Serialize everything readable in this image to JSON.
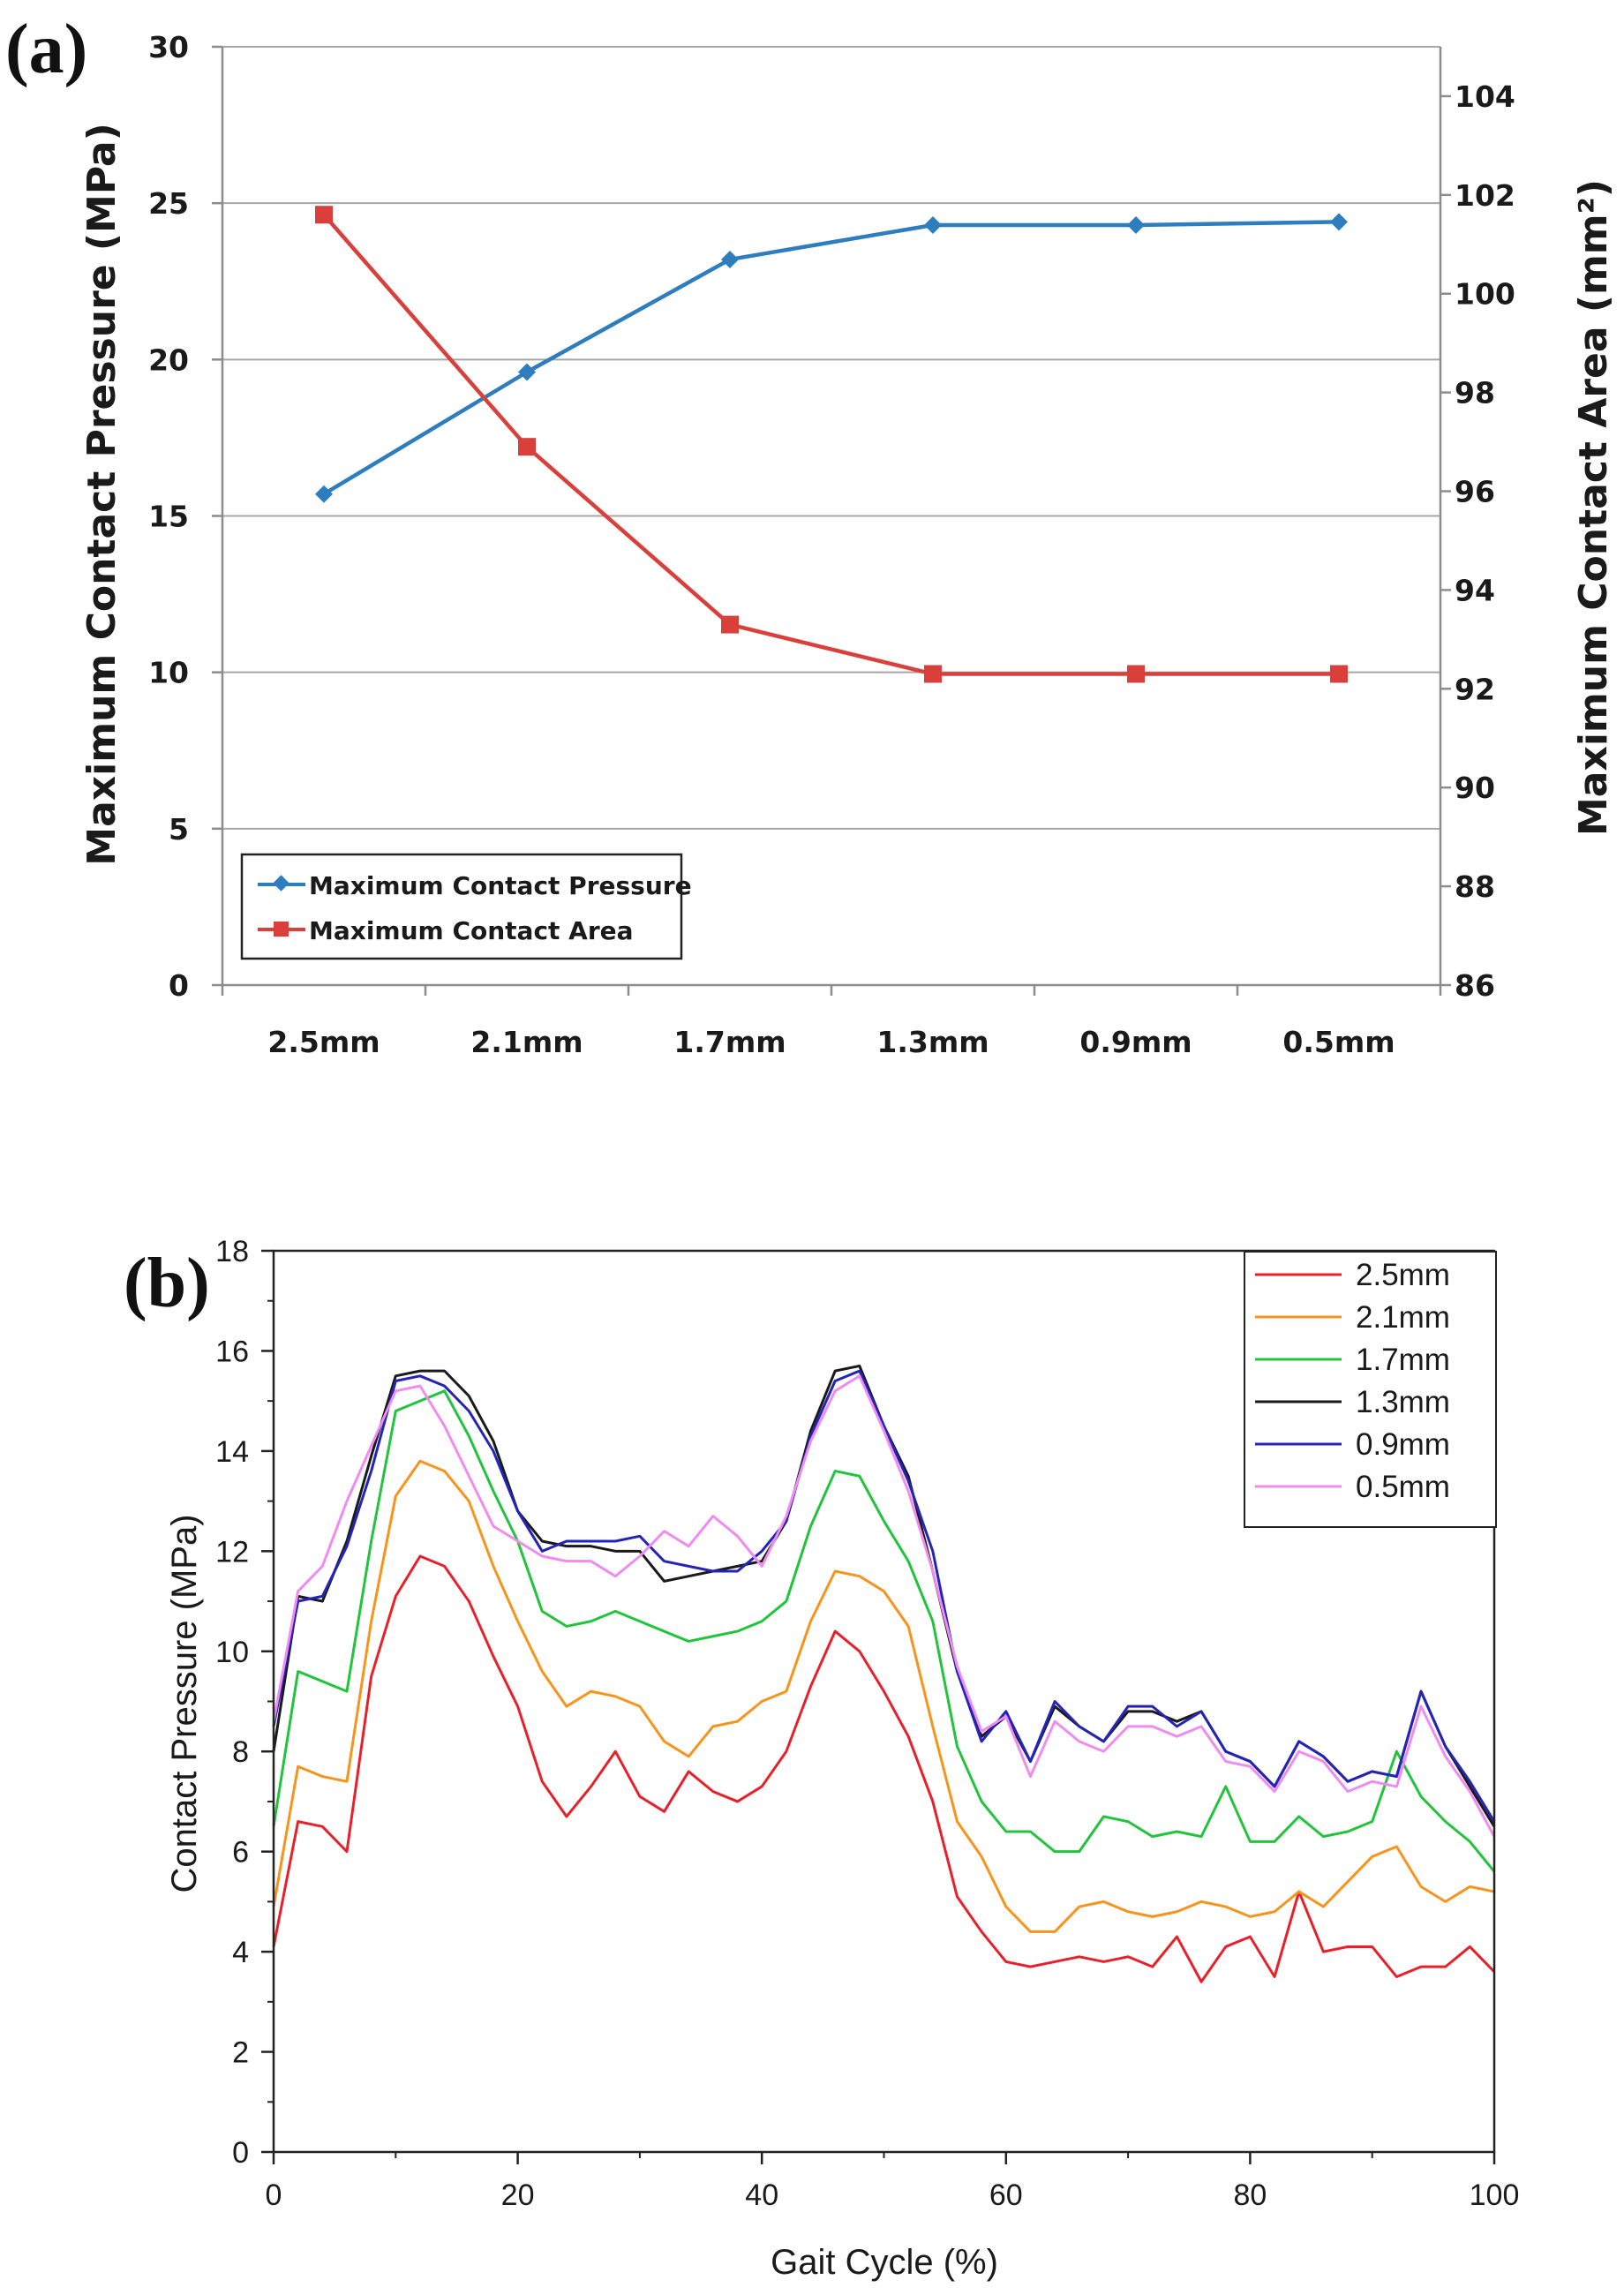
{
  "chart_data": [
    {
      "panel": "(a)",
      "type": "line",
      "title": "",
      "xlabel": "",
      "ylabel": "Maximum Contact Pressure (MPa)",
      "y2label": "Maximum Contact Area (mm²)",
      "categories": [
        "2.5mm",
        "2.1mm",
        "1.7mm",
        "1.3mm",
        "0.9mm",
        "0.5mm"
      ],
      "ylim": [
        0,
        30
      ],
      "y_ticks": [
        0,
        5,
        10,
        15,
        20,
        25,
        30
      ],
      "y2lim": [
        86,
        105
      ],
      "y2_ticks": [
        86,
        88,
        90,
        92,
        94,
        96,
        98,
        100,
        102,
        104
      ],
      "grid": "horizontal",
      "legend_position": "bottom-left",
      "series": [
        {
          "name": "Maximum Contact Pressure",
          "axis": "left",
          "color": "#2e7ebf",
          "marker": "diamond",
          "values": [
            15.7,
            19.6,
            23.2,
            24.3,
            24.3,
            24.4
          ]
        },
        {
          "name": "Maximum Contact Area",
          "axis": "right",
          "color": "#d9403b",
          "marker": "square",
          "values": [
            101.6,
            96.9,
            93.3,
            92.3,
            92.3,
            92.3
          ]
        }
      ]
    },
    {
      "panel": "(b)",
      "type": "line",
      "title": "",
      "xlabel": "Gait Cycle (%)",
      "ylabel": "Contact Pressure (MPa)",
      "xlim": [
        0,
        100
      ],
      "x_ticks": [
        0,
        20,
        40,
        60,
        80,
        100
      ],
      "ylim": [
        0,
        18
      ],
      "y_ticks": [
        0,
        2,
        4,
        6,
        8,
        10,
        12,
        14,
        16,
        18
      ],
      "grid": "none",
      "legend_position": "top-right",
      "x": [
        0,
        2,
        4,
        6,
        8,
        10,
        12,
        14,
        16,
        18,
        20,
        22,
        24,
        26,
        28,
        30,
        32,
        34,
        36,
        38,
        40,
        42,
        44,
        46,
        48,
        50,
        52,
        54,
        56,
        58,
        60,
        62,
        64,
        66,
        68,
        70,
        72,
        74,
        76,
        78,
        80,
        82,
        84,
        86,
        88,
        90,
        92,
        94,
        96,
        98,
        100
      ],
      "series": [
        {
          "name": "2.5mm",
          "color": "#e8202a",
          "values": [
            4.1,
            6.6,
            6.5,
            6.0,
            9.5,
            11.1,
            11.9,
            11.7,
            11.0,
            9.9,
            8.9,
            7.4,
            6.7,
            7.3,
            8.0,
            7.1,
            6.8,
            7.6,
            7.2,
            7.0,
            7.3,
            8.0,
            9.3,
            10.4,
            10.0,
            9.2,
            8.3,
            7.0,
            5.1,
            4.4,
            3.8,
            3.7,
            3.8,
            3.9,
            3.8,
            3.9,
            3.7,
            4.3,
            3.4,
            4.1,
            4.3,
            3.5,
            5.2,
            4.0,
            4.1,
            4.1,
            3.5,
            3.7,
            3.7,
            4.1,
            3.6
          ]
        },
        {
          "name": "2.1mm",
          "color": "#f7941d",
          "values": [
            4.9,
            7.7,
            7.5,
            7.4,
            10.6,
            13.1,
            13.8,
            13.6,
            13.0,
            11.7,
            10.6,
            9.6,
            8.9,
            9.2,
            9.1,
            8.9,
            8.2,
            7.9,
            8.5,
            8.6,
            9.0,
            9.2,
            10.6,
            11.6,
            11.5,
            11.2,
            10.5,
            8.5,
            6.6,
            5.9,
            4.9,
            4.4,
            4.4,
            4.9,
            5.0,
            4.8,
            4.7,
            4.8,
            5.0,
            4.9,
            4.7,
            4.8,
            5.2,
            4.9,
            5.4,
            5.9,
            6.1,
            5.3,
            5.0,
            5.3,
            5.2
          ]
        },
        {
          "name": "1.7mm",
          "color": "#22c43e",
          "values": [
            6.5,
            9.6,
            9.4,
            9.2,
            12.2,
            14.8,
            15.0,
            15.2,
            14.3,
            13.2,
            12.2,
            10.8,
            10.5,
            10.6,
            10.8,
            10.6,
            10.4,
            10.2,
            10.3,
            10.4,
            10.6,
            11.0,
            12.5,
            13.6,
            13.5,
            12.6,
            11.8,
            10.6,
            8.1,
            7.0,
            6.4,
            6.4,
            6.0,
            6.0,
            6.7,
            6.6,
            6.3,
            6.4,
            6.3,
            7.3,
            6.2,
            6.2,
            6.7,
            6.3,
            6.4,
            6.6,
            8.0,
            7.1,
            6.6,
            6.2,
            5.6
          ]
        },
        {
          "name": "1.3mm",
          "color": "#1a1a1a",
          "values": [
            8.0,
            11.1,
            11.0,
            12.2,
            13.9,
            15.5,
            15.6,
            15.6,
            15.1,
            14.2,
            12.8,
            12.2,
            12.1,
            12.1,
            12.0,
            12.0,
            11.4,
            11.5,
            11.6,
            11.7,
            11.8,
            12.6,
            14.4,
            15.6,
            15.7,
            14.5,
            13.5,
            11.6,
            9.6,
            8.3,
            8.7,
            7.8,
            8.9,
            8.5,
            8.2,
            8.8,
            8.8,
            8.6,
            8.8,
            8.0,
            7.8,
            7.3,
            8.2,
            7.9,
            7.4,
            7.6,
            7.5,
            9.2,
            8.1,
            7.3,
            6.5
          ]
        },
        {
          "name": "0.9mm",
          "color": "#2424b8",
          "values": [
            8.5,
            11.0,
            11.1,
            12.1,
            13.6,
            15.4,
            15.5,
            15.3,
            14.8,
            14.0,
            12.8,
            12.0,
            12.2,
            12.2,
            12.2,
            12.3,
            11.8,
            11.7,
            11.6,
            11.6,
            12.0,
            12.6,
            14.3,
            15.4,
            15.6,
            14.5,
            13.4,
            12.0,
            9.6,
            8.2,
            8.8,
            7.8,
            9.0,
            8.5,
            8.2,
            8.9,
            8.9,
            8.5,
            8.8,
            8.0,
            7.8,
            7.3,
            8.2,
            7.9,
            7.4,
            7.6,
            7.5,
            9.2,
            8.1,
            7.4,
            6.6
          ]
        },
        {
          "name": "0.5mm",
          "color": "#f08cf0",
          "values": [
            8.6,
            11.2,
            11.7,
            13.0,
            14.1,
            15.2,
            15.3,
            14.5,
            13.5,
            12.5,
            12.2,
            11.9,
            11.8,
            11.8,
            11.5,
            11.9,
            12.4,
            12.1,
            12.7,
            12.3,
            11.7,
            12.7,
            14.2,
            15.2,
            15.5,
            14.4,
            13.2,
            11.6,
            9.7,
            8.4,
            8.7,
            7.5,
            8.6,
            8.2,
            8.0,
            8.5,
            8.5,
            8.3,
            8.5,
            7.8,
            7.7,
            7.2,
            8.0,
            7.8,
            7.2,
            7.4,
            7.3,
            8.9,
            7.9,
            7.2,
            6.3
          ]
        }
      ]
    }
  ]
}
